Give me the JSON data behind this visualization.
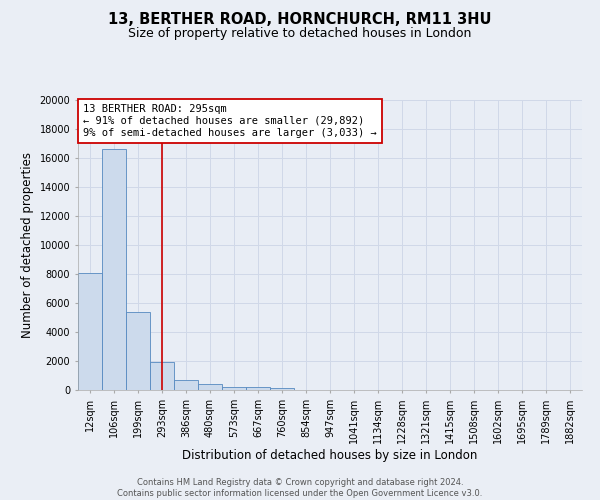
{
  "title_line1": "13, BERTHER ROAD, HORNCHURCH, RM11 3HU",
  "title_line2": "Size of property relative to detached houses in London",
  "xlabel": "Distribution of detached houses by size in London",
  "ylabel": "Number of detached properties",
  "categories": [
    "12sqm",
    "106sqm",
    "199sqm",
    "293sqm",
    "386sqm",
    "480sqm",
    "573sqm",
    "667sqm",
    "760sqm",
    "854sqm",
    "947sqm",
    "1041sqm",
    "1134sqm",
    "1228sqm",
    "1321sqm",
    "1415sqm",
    "1508sqm",
    "1602sqm",
    "1695sqm",
    "1789sqm",
    "1882sqm"
  ],
  "values": [
    8050,
    16600,
    5350,
    1900,
    700,
    380,
    230,
    190,
    130,
    0,
    0,
    0,
    0,
    0,
    0,
    0,
    0,
    0,
    0,
    0,
    0
  ],
  "bar_color": "#ccdaec",
  "bar_edge_color": "#5589c0",
  "vline_x": 3.0,
  "vline_color": "#cc0000",
  "annotation_text": "13 BERTHER ROAD: 295sqm\n← 91% of detached houses are smaller (29,892)\n9% of semi-detached houses are larger (3,033) →",
  "annotation_box_color": "white",
  "annotation_box_edge_color": "#cc0000",
  "ylim": [
    0,
    20000
  ],
  "yticks": [
    0,
    2000,
    4000,
    6000,
    8000,
    10000,
    12000,
    14000,
    16000,
    18000,
    20000
  ],
  "bg_color": "#eaeef5",
  "plot_bg_color": "#e8edf5",
  "grid_color": "#d0d8e8",
  "footnote": "Contains HM Land Registry data © Crown copyright and database right 2024.\nContains public sector information licensed under the Open Government Licence v3.0.",
  "title_fontsize": 10.5,
  "subtitle_fontsize": 9,
  "axis_label_fontsize": 8.5,
  "tick_fontsize": 7,
  "annot_fontsize": 7.5,
  "footnote_fontsize": 6
}
